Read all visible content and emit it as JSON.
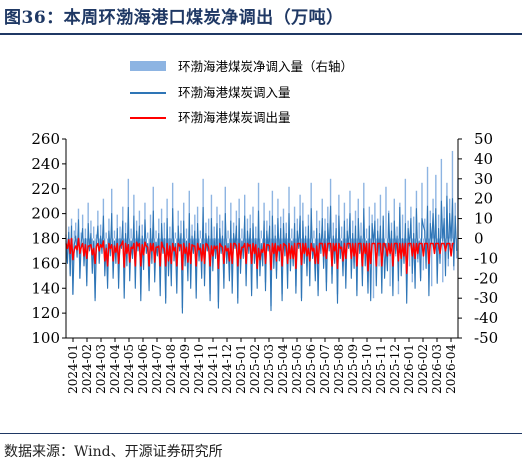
{
  "figure": {
    "title": "图36：本周环渤海港口煤炭净调出（万吨）",
    "source": "数据来源：Wind、开源证券研究所"
  },
  "colors": {
    "title": "#1f3864",
    "net_series": "#8db4e2",
    "in_series": "#2e75b6",
    "out_series": "#ff0000"
  },
  "chart_data": {
    "type": "line",
    "left_axis": {
      "ylim": [
        100,
        260
      ],
      "ticks": [
        100,
        120,
        140,
        160,
        180,
        200,
        220,
        240,
        260
      ]
    },
    "right_axis": {
      "ylim": [
        -50,
        50
      ],
      "ticks": [
        -50,
        -40,
        -30,
        -20,
        -10,
        0,
        10,
        20,
        30,
        40,
        50
      ]
    },
    "x_ticks": [
      "2024-01",
      "2024-02",
      "2024-03",
      "2024-04",
      "2024-05",
      "2024-06",
      "2024-07",
      "2024-08",
      "2024-09",
      "2024-10",
      "2024-11",
      "2024-12",
      "2025-01",
      "2025-02",
      "2025-03",
      "2025-04",
      "2025-05",
      "2025-06",
      "2025-07",
      "2025-08",
      "2025-09",
      "2025-10",
      "2025-11",
      "2025-12",
      "2026-01",
      "2026-02",
      "2026-03",
      "2026-04"
    ],
    "x_tick_labels": [
      "2024-01",
      "2024-03",
      "2024-05",
      "2024-07",
      "2024-09",
      "2024-11",
      "2025-01",
      "2025-03",
      "2025-05",
      "2025-07",
      "2025-09",
      "2025-11",
      "2026-01",
      "2026-03",
      "2024-02",
      "2024-04",
      "2024-06",
      "2024-08",
      "2024-10",
      "2024-12",
      "2025-02",
      "2025-04",
      "2025-06",
      "2025-08",
      "2025-10",
      "2025-12",
      "2026-02",
      "2026-04"
    ],
    "legend_position": "top",
    "series": [
      {
        "name": "环渤海港煤炭净调入量（右轴）",
        "axis": "right",
        "style": "area",
        "values": [
          2,
          -12,
          6,
          -18,
          10,
          -28,
          4,
          8,
          -6,
          15,
          -20,
          3,
          12,
          -8,
          5,
          -22,
          18,
          -4,
          9,
          -15,
          6,
          -30,
          2,
          14,
          -10,
          7,
          -5,
          20,
          -12,
          3,
          -18,
          10,
          -6,
          25,
          -14,
          4,
          -9,
          12,
          -20,
          6,
          -3,
          16,
          -25,
          8,
          -10,
          30,
          -15,
          5,
          -8,
          22,
          -18,
          9,
          -4,
          14,
          -28,
          7,
          -12,
          18,
          -6,
          3,
          -20,
          12,
          -10,
          26,
          -16,
          4,
          -7,
          10,
          -24,
          15,
          -5,
          8,
          -30,
          20,
          -12,
          6,
          -18,
          28,
          -8,
          3,
          -22,
          14,
          -4,
          9,
          -35,
          18,
          -10,
          5,
          -15,
          24,
          -20,
          7,
          -6,
          12,
          -26,
          16,
          -9,
          4,
          -14,
          30,
          -18,
          8,
          -5,
          10,
          -28,
          22,
          -12,
          6,
          -8,
          16,
          -32,
          12,
          -6,
          9,
          -20,
          26,
          -10,
          4,
          -16,
          18,
          -24,
          8,
          -4,
          14,
          -30,
          20,
          -12,
          5,
          -9,
          22,
          -18,
          10,
          -6,
          12,
          -26,
          16,
          -8,
          6,
          -20,
          28,
          -14,
          4,
          -10,
          18,
          -22,
          9,
          -5,
          14,
          -34,
          24,
          -12,
          7,
          -16,
          20,
          -8,
          11,
          -28,
          15,
          -6,
          8,
          -18,
          26,
          -12,
          5,
          -10,
          16,
          -24,
          10,
          -4,
          22,
          -30,
          18,
          -9,
          6,
          -14,
          12,
          -20,
          28,
          -8,
          4,
          -16,
          14,
          -26,
          9,
          -6,
          20,
          -12,
          10,
          -22,
          16,
          -5,
          30,
          -18,
          8,
          -10,
          12,
          -28,
          22,
          -8,
          6,
          -14,
          18,
          -20,
          10,
          -4,
          24,
          -16,
          9,
          -12,
          14,
          -26,
          20,
          -6,
          8,
          -18,
          28,
          -10,
          5,
          -22,
          16,
          -8,
          12,
          -30,
          18,
          -6,
          10,
          -14,
          22,
          -20,
          9,
          -5,
          26,
          -12,
          14,
          -24,
          8,
          -16,
          20,
          -9,
          6,
          -28,
          18,
          -10,
          12,
          -6,
          30,
          -18,
          9,
          -14,
          16,
          -22,
          11,
          -5,
          24,
          -12,
          8,
          -20,
          28,
          -16,
          10,
          -8,
          36,
          -12,
          14,
          -24,
          20,
          -6,
          32,
          -18,
          12,
          -10,
          40,
          -22,
          16,
          -8,
          28,
          -14,
          20,
          -4,
          44,
          -16,
          18,
          -10,
          30
        ]
      },
      {
        "name": "环渤海港煤炭调入量",
        "axis": "left",
        "style": "line",
        "values": [
          178,
          160,
          185,
          150,
          190,
          135,
          175,
          182,
          165,
          195,
          148,
          176,
          188,
          158,
          180,
          142,
          192,
          170,
          184,
          152,
          178,
          130,
          176,
          190,
          160,
          182,
          168,
          198,
          150,
          175,
          140,
          186,
          166,
          200,
          148,
          178,
          160,
          188,
          140,
          180,
          172,
          194,
          132,
          184,
          158,
          205,
          146,
          178,
          164,
          198,
          140,
          186,
          170,
          190,
          130,
          182,
          155,
          195,
          168,
          176,
          138,
          188,
          160,
          202,
          145,
          177,
          166,
          184,
          134,
          192,
          168,
          180,
          128,
          196,
          150,
          180,
          142,
          204,
          162,
          176,
          136,
          190,
          170,
          184,
          120,
          194,
          158,
          178,
          146,
          200,
          140,
          182,
          168,
          186,
          132,
          192,
          162,
          176,
          148,
          205,
          142,
          184,
          170,
          182,
          130,
          196,
          154,
          180,
          164,
          192,
          124,
          188,
          168,
          182,
          140,
          200,
          160,
          176,
          146,
          194,
          136,
          184,
          172,
          190,
          128,
          196,
          152,
          178,
          164,
          198,
          142,
          186,
          168,
          188,
          134,
          192,
          160,
          180,
          140,
          202,
          150,
          176,
          158,
          194,
          138,
          186,
          170,
          190,
          122,
          198,
          156,
          182,
          148,
          196,
          162,
          188,
          130,
          192,
          166,
          184,
          140,
          200,
          154,
          178,
          158,
          192,
          136,
          186,
          172,
          198,
          130,
          194,
          160,
          182,
          150,
          190,
          142,
          204,
          164,
          176,
          146,
          188,
          134,
          184,
          168,
          196,
          156,
          186,
          138,
          192,
          170,
          206,
          144,
          182,
          160,
          188,
          128,
          198,
          164,
          178,
          150,
          194,
          140,
          186,
          172,
          200,
          148,
          184,
          156,
          190,
          134,
          196,
          168,
          182,
          142,
          204,
          158,
          178,
          136,
          190,
          130,
          192,
          176,
          194,
          142,
          186,
          166,
          190,
          136,
          198,
          148,
          176,
          154,
          200,
          166,
          186,
          134,
          194,
          168,
          182,
          146,
          205,
          150,
          180,
          160,
          192,
          128,
          188,
          174,
          196,
          152,
          184,
          140,
          204,
          164,
          178,
          146,
          196,
          190,
          186,
          156,
          206,
          134,
          192,
          176,
          200,
          168,
          204,
          144,
          188,
          160,
          210,
          178,
          196,
          150,
          214,
          164,
          200,
          178,
          212,
          158,
          198,
          170
        ]
      },
      {
        "name": "环渤海港煤炭调出量",
        "axis": "left",
        "style": "line",
        "values": [
          176,
          172,
          179,
          168,
          180,
          163,
          171,
          174,
          171,
          180,
          168,
          173,
          176,
          166,
          175,
          164,
          174,
          174,
          175,
          167,
          172,
          160,
          174,
          176,
          170,
          175,
          173,
          178,
          162,
          172,
          158,
          176,
          172,
          175,
          162,
          174,
          169,
          176,
          160,
          174,
          175,
          178,
          157,
          176,
          168,
          175,
          161,
          173,
          172,
          176,
          158,
          177,
          174,
          176,
          158,
          175,
          167,
          177,
          174,
          173,
          158,
          176,
          170,
          176,
          161,
          173,
          173,
          174,
          158,
          177,
          173,
          172,
          158,
          176,
          162,
          174,
          160,
          176,
          170,
          173,
          158,
          176,
          174,
          175,
          155,
          176,
          168,
          173,
          161,
          176,
          160,
          175,
          174,
          174,
          158,
          176,
          171,
          172,
          162,
          175,
          160,
          176,
          175,
          172,
          158,
          174,
          166,
          174,
          172,
          174,
          156,
          176,
          174,
          173,
          160,
          174,
          170,
          172,
          162,
          176,
          160,
          176,
          176,
          174,
          158,
          176,
          164,
          173,
          173,
          176,
          160,
          176,
          174,
          175,
          160,
          176,
          168,
          175,
          156,
          172,
          163,
          171,
          169,
          176,
          160,
          175,
          175,
          174,
          155,
          176,
          168,
          176,
          162,
          174,
          170,
          175,
          158,
          176,
          175,
          174,
          160,
          176,
          164,
          174,
          164,
          176,
          156,
          176,
          176,
          176,
          159,
          176,
          168,
          176,
          166,
          172,
          162,
          176,
          170,
          172,
          160,
          174,
          160,
          176,
          176,
          176,
          166,
          176,
          164,
          176,
          176,
          176,
          158,
          176,
          170,
          176,
          156,
          176,
          172,
          173,
          162,
          176,
          164,
          176,
          176,
          176,
          164,
          176,
          166,
          176,
          158,
          176,
          176,
          176,
          158,
          176,
          168,
          176,
          154,
          176,
          160,
          176,
          176,
          176,
          158,
          176,
          176,
          176,
          158,
          176,
          176,
          172,
          166,
          176,
          168,
          176,
          158,
          176,
          176,
          176,
          162,
          176,
          164,
          176,
          166,
          176,
          152,
          176,
          176,
          176,
          166,
          176,
          164,
          176,
          168,
          176,
          176,
          176,
          166,
          176,
          176,
          176,
          160,
          176,
          176,
          176,
          168,
          176,
          176,
          176,
          168,
          176,
          176,
          176,
          170,
          176,
          176,
          176,
          166,
          176,
          176
        ]
      }
    ]
  }
}
